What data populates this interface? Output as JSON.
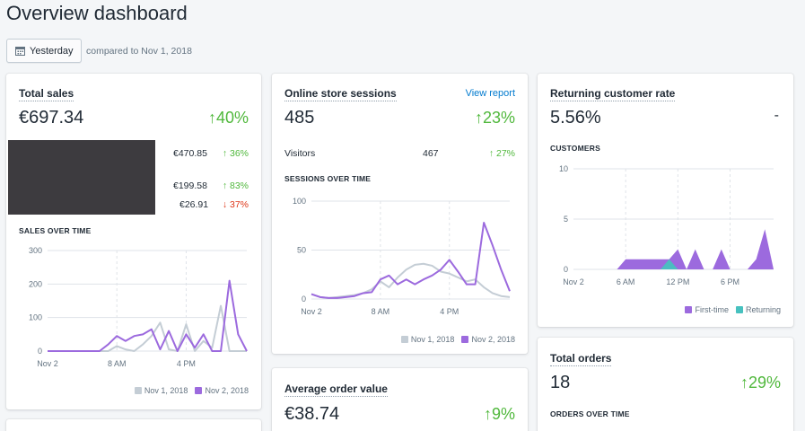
{
  "page": {
    "title": "Overview dashboard"
  },
  "date_filter": {
    "label": "Yesterday",
    "compared": "compared to Nov 1, 2018",
    "icon": "calendar-icon"
  },
  "colors": {
    "current": "#9c6ade",
    "previous": "#c4cdd5",
    "up": "#50b83c",
    "down": "#de3618",
    "returning": "#47c1bf"
  },
  "total_sales": {
    "title": "Total sales",
    "value": "€697.34",
    "change": "↑40%",
    "rows": [
      {
        "amount": "€470.85",
        "change": "↑ 36%",
        "direction": "up"
      },
      {
        "amount": "€199.58",
        "change": "↑ 83%",
        "direction": "up"
      },
      {
        "amount": "€26.91",
        "change": "↓ 37%",
        "direction": "down"
      }
    ],
    "chart_title": "SALES OVER TIME",
    "legend": [
      "Nov 1, 2018",
      "Nov 2, 2018"
    ]
  },
  "sessions": {
    "title": "Online store sessions",
    "link": "View report",
    "value": "485",
    "change": "↑23%",
    "visitors_label": "Visitors",
    "visitors_value": "467",
    "visitors_change": "↑ 27%",
    "chart_title": "SESSIONS OVER TIME",
    "legend": [
      "Nov 1, 2018",
      "Nov 2, 2018"
    ]
  },
  "returning": {
    "title": "Returning customer rate",
    "value": "5.56%",
    "change": "-",
    "chart_title": "CUSTOMERS",
    "legend": [
      "First-time",
      "Returning"
    ]
  },
  "avg_order": {
    "title": "Average order value",
    "value": "€38.74",
    "change": "↑9%"
  },
  "total_orders": {
    "title": "Total orders",
    "value": "18",
    "change": "↑29%",
    "chart_title": "ORDERS OVER TIME"
  },
  "chart_data": [
    {
      "type": "line",
      "chart": "sales",
      "x_ticks": [
        "Nov 2",
        "8 AM",
        "4 PM"
      ],
      "y_ticks": [
        "300",
        "200",
        "100",
        "0"
      ],
      "ylim": [
        0,
        300
      ],
      "series": [
        {
          "name": "Nov 1, 2018",
          "values": [
            0,
            0,
            0,
            0,
            0,
            0,
            0,
            0,
            15,
            5,
            0,
            20,
            45,
            85,
            5,
            0,
            80,
            0,
            30,
            10,
            135,
            0,
            0,
            0
          ]
        },
        {
          "name": "Nov 2, 2018",
          "values": [
            0,
            0,
            0,
            0,
            0,
            0,
            0,
            20,
            45,
            30,
            45,
            50,
            65,
            5,
            60,
            0,
            50,
            10,
            50,
            0,
            0,
            210,
            50,
            0
          ]
        }
      ]
    },
    {
      "type": "line",
      "chart": "sessions",
      "x_ticks": [
        "Nov 2",
        "8 AM",
        "4 PM"
      ],
      "y_ticks": [
        "100",
        "50",
        "0"
      ],
      "ylim": [
        0,
        100
      ],
      "series": [
        {
          "name": "Nov 1, 2018",
          "values": [
            5,
            2,
            1,
            2,
            3,
            4,
            6,
            10,
            18,
            12,
            22,
            30,
            35,
            36,
            34,
            28,
            26,
            22,
            18,
            20,
            12,
            6,
            3,
            2
          ]
        },
        {
          "name": "Nov 2, 2018",
          "values": [
            5,
            2,
            1,
            1,
            2,
            3,
            6,
            7,
            20,
            24,
            15,
            20,
            15,
            20,
            24,
            30,
            40,
            28,
            15,
            15,
            78,
            55,
            30,
            8
          ]
        }
      ]
    },
    {
      "type": "area",
      "chart": "customers",
      "x_ticks": [
        "Nov 2",
        "6 AM",
        "12 PM",
        "6 PM"
      ],
      "y_ticks": [
        "10",
        "5",
        "0"
      ],
      "ylim": [
        0,
        10
      ],
      "series": [
        {
          "name": "First-time",
          "values": [
            0,
            0,
            0,
            0,
            0,
            0,
            1,
            1,
            1,
            1,
            1,
            1,
            2,
            0,
            2,
            0,
            0,
            2,
            0,
            0,
            0,
            1,
            4,
            0
          ]
        },
        {
          "name": "Returning",
          "values": [
            0,
            0,
            0,
            0,
            0,
            0,
            0,
            0,
            0,
            0,
            0,
            1,
            0,
            0,
            0,
            0,
            0,
            0,
            0,
            0,
            0,
            0,
            0,
            0
          ]
        }
      ]
    }
  ]
}
